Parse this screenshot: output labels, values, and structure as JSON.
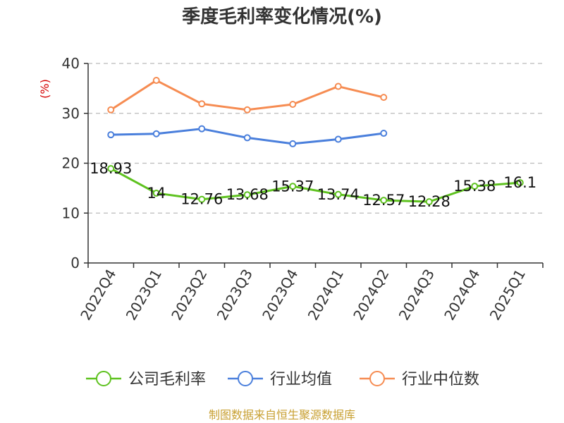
{
  "chart_data": {
    "type": "line",
    "title": "季度毛利率变化情况(%)",
    "unit_label": "(%)",
    "categories": [
      "2022Q4",
      "2023Q1",
      "2023Q2",
      "2023Q3",
      "2023Q4",
      "2024Q1",
      "2024Q2",
      "2024Q3",
      "2024Q4",
      "2025Q1"
    ],
    "ylim": [
      0,
      40
    ],
    "yticks": [
      0,
      10,
      20,
      30,
      40
    ],
    "grid": true,
    "legend_position": "bottom",
    "series": [
      {
        "name": "公司毛利率",
        "color": "#5ec21f",
        "values": [
          18.93,
          14,
          12.76,
          13.68,
          15.37,
          13.74,
          12.57,
          12.28,
          15.38,
          16.1
        ],
        "labels": [
          "18.93",
          "14",
          "12.76",
          "13.68",
          "15.37",
          "13.74",
          "12.57",
          "12.28",
          "15.38",
          "16.1"
        ]
      },
      {
        "name": "行业均值",
        "color": "#4a7fdc",
        "values": [
          25.7,
          25.9,
          26.9,
          25.1,
          23.9,
          24.8,
          26.0,
          null,
          null,
          null
        ]
      },
      {
        "name": "行业中位数",
        "color": "#f68c52",
        "values": [
          30.7,
          36.6,
          31.9,
          30.7,
          31.8,
          35.4,
          33.2,
          null,
          null,
          null
        ]
      }
    ]
  },
  "source_text": "制图数据来自恒生聚源数据库"
}
